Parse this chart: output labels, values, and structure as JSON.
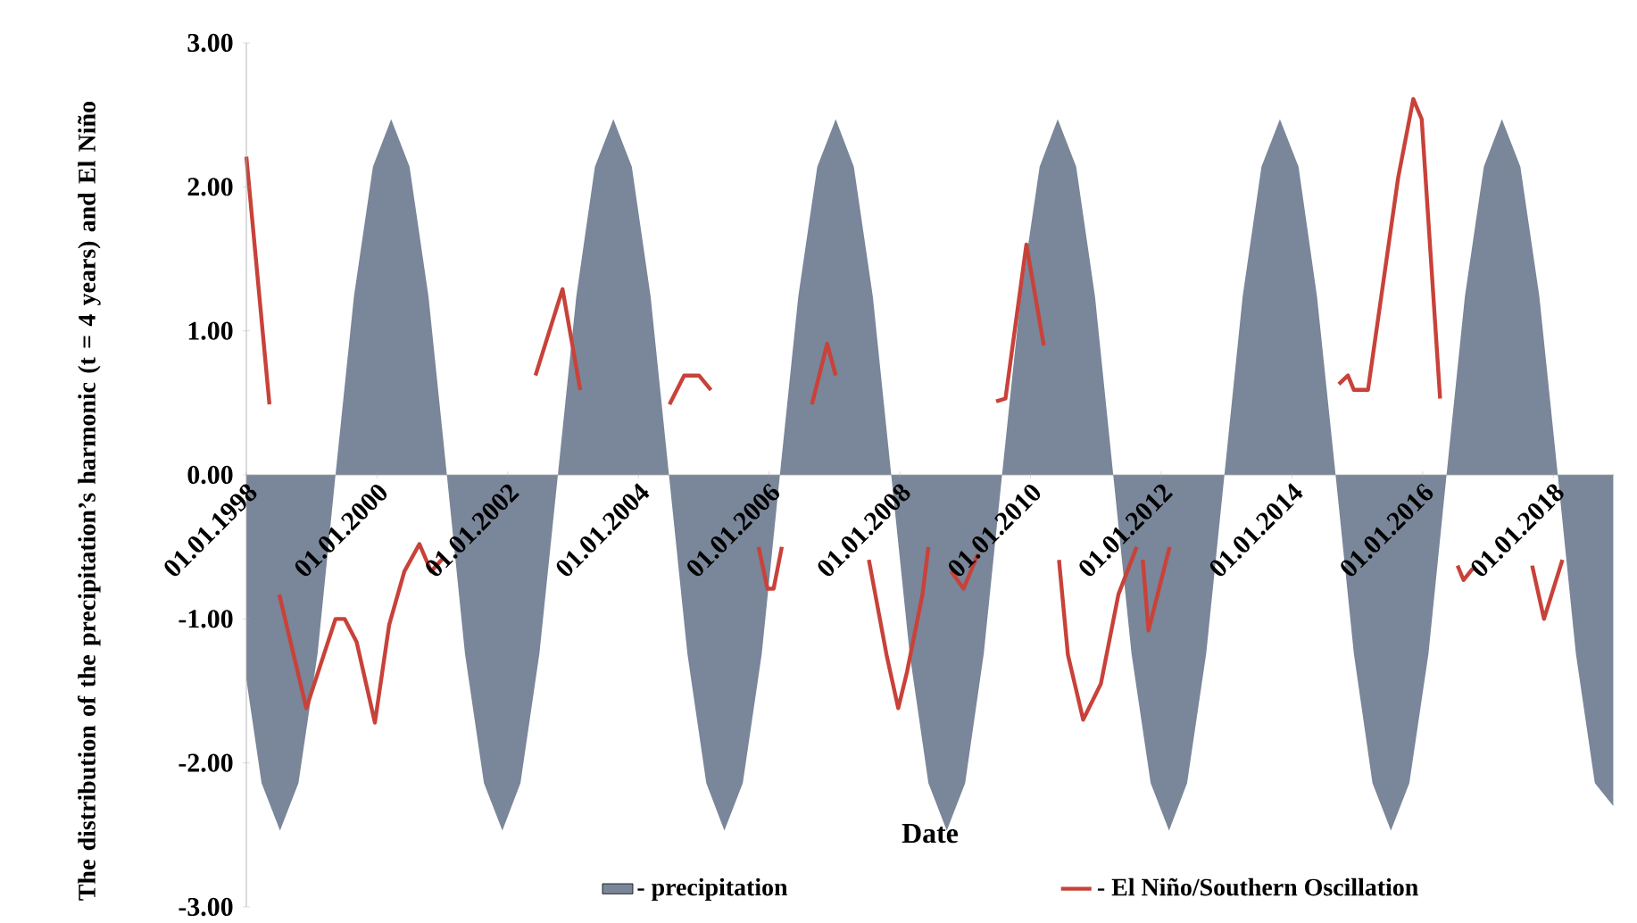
{
  "chart_data": {
    "type": "line",
    "xlabel": "Date",
    "ylabel": "The distribution of the precipitation’s harmonic (t = 4 years) and El Niño",
    "xlim": [
      "1998-01-01",
      "2018-12-05"
    ],
    "ylim": [
      -3,
      3
    ],
    "xticks": [
      {
        "value": "1998-01-01",
        "label": "01.01.1998"
      },
      {
        "value": "2000-01-01",
        "label": "01.01.2000"
      },
      {
        "value": "2002-01-01",
        "label": "01.01.2002"
      },
      {
        "value": "2004-01-01",
        "label": "01.01.2004"
      },
      {
        "value": "2006-01-01",
        "label": "01.01.2006"
      },
      {
        "value": "2008-01-01",
        "label": "01.01.2008"
      },
      {
        "value": "2010-01-01",
        "label": "01.01.2010"
      },
      {
        "value": "2012-01-01",
        "label": "01.01.2012"
      },
      {
        "value": "2014-01-01",
        "label": "01.01.2014"
      },
      {
        "value": "2016-01-01",
        "label": "01.01.2016"
      },
      {
        "value": "2018-01-01",
        "label": "01.01.2018"
      }
    ],
    "yticks": [
      {
        "value": -3,
        "label": "-3.00"
      },
      {
        "value": -2,
        "label": "-2.00"
      },
      {
        "value": -1,
        "label": "-1.00"
      },
      {
        "value": 0,
        "label": "0.00"
      },
      {
        "value": 1,
        "label": "1.00"
      },
      {
        "value": 2,
        "label": "2.00"
      },
      {
        "value": 3,
        "label": "3.00"
      }
    ],
    "grid": false,
    "legend": "bottom",
    "marker": "none",
    "line_style": "solid",
    "series": [
      {
        "name": "- precipitation",
        "type": "area",
        "color": "#7a8699",
        "x": [
          "1998-01-01",
          "1998-03-27",
          "1998-07-08",
          "1998-10-19",
          "1999-02-03",
          "1999-05-14",
          "1999-08-25",
          "1999-12-09",
          "2000-03-20",
          "2000-07-01",
          "2000-10-15",
          "2001-01-26",
          "2001-05-07",
          "2001-08-21",
          "2001-12-02",
          "2002-03-13",
          "2002-06-27",
          "2002-10-08",
          "2003-01-19",
          "2003-05-03",
          "2003-08-14",
          "2003-11-25",
          "2004-03-09",
          "2004-06-20",
          "2004-10-01",
          "2005-01-15",
          "2005-04-26",
          "2005-08-07",
          "2005-11-21",
          "2006-03-02",
          "2006-06-13",
          "2006-09-27",
          "2007-01-08",
          "2007-04-19",
          "2007-08-03",
          "2007-11-14",
          "2008-02-25",
          "2008-06-09",
          "2008-09-20",
          "2009-01-01",
          "2009-04-15",
          "2009-07-26",
          "2009-11-07",
          "2010-02-21",
          "2010-06-02",
          "2010-09-13",
          "2010-12-27",
          "2011-04-08",
          "2011-07-19",
          "2011-11-03",
          "2012-02-14",
          "2012-05-25",
          "2012-09-09",
          "2012-12-20",
          "2013-04-01",
          "2013-07-15",
          "2013-10-26",
          "2014-02-07",
          "2014-05-21",
          "2014-09-02",
          "2014-12-13",
          "2015-03-27",
          "2015-07-08",
          "2015-10-19",
          "2016-02-03",
          "2016-05-14",
          "2016-08-25",
          "2016-12-09",
          "2017-03-20",
          "2017-07-01",
          "2017-10-15",
          "2018-01-26",
          "2018-05-07",
          "2018-08-21",
          "2018-12-02"
        ],
        "values": [
          -1.42,
          -2.14,
          -2.47,
          -2.14,
          -1.24,
          0,
          1.24,
          2.14,
          2.47,
          2.14,
          1.24,
          0,
          -1.24,
          -2.14,
          -2.47,
          -2.14,
          -1.24,
          0,
          1.24,
          2.14,
          2.47,
          2.14,
          1.24,
          0,
          -1.24,
          -2.14,
          -2.47,
          -2.14,
          -1.24,
          0,
          1.24,
          2.14,
          2.47,
          2.14,
          1.24,
          0,
          -1.24,
          -2.14,
          -2.47,
          -2.14,
          -1.24,
          0,
          1.24,
          2.14,
          2.47,
          2.14,
          1.24,
          0,
          -1.24,
          -2.14,
          -2.47,
          -2.14,
          -1.24,
          0,
          1.24,
          2.14,
          2.47,
          2.14,
          1.24,
          0,
          -1.24,
          -2.14,
          -2.47,
          -2.14,
          -1.24,
          0,
          1.24,
          2.14,
          2.47,
          2.14,
          1.24,
          0,
          -1.24,
          -2.14,
          -2.3
        ]
      },
      {
        "name": "- El Niño/Southern Oscillation",
        "color": "#c8423a",
        "x": [
          "1998-01-01",
          "1998-05-10",
          "1998-06-05",
          "1998-07-04",
          "1998-12-02",
          "1999-05-14",
          "1999-07-04",
          "1999-09-09",
          "1999-12-20",
          "2000-03-09",
          "2000-06-02",
          "2000-08-25",
          "2000-10-30",
          "2001-01-04",
          "2001-07-01",
          "2002-06-05",
          "2002-11-03",
          "2003-02-10",
          "2003-10-19",
          "2004-06-23",
          "2004-09-13",
          "2004-12-05",
          "2005-02-10",
          "2005-07-01",
          "2005-11-03",
          "2005-12-23",
          "2006-01-26",
          "2006-03-13",
          "2006-05-25",
          "2006-08-28",
          "2006-11-21",
          "2007-01-08",
          "2007-04-19",
          "2007-07-12",
          "2007-10-19",
          "2007-12-23",
          "2008-02-10",
          "2008-05-07",
          "2008-06-09",
          "2008-08-07",
          "2008-10-15",
          "2008-12-23",
          "2009-03-13",
          "2009-05-07",
          "2009-06-23",
          "2009-08-14",
          "2009-12-09",
          "2010-03-16",
          "2010-04-19",
          "2010-06-09",
          "2010-07-29",
          "2010-10-22",
          "2011-01-29",
          "2011-05-07",
          "2011-08-17",
          "2011-09-05",
          "2011-09-20",
          "2011-10-22",
          "2012-02-17",
          "2013-07-01",
          "2014-09-20",
          "2014-11-10",
          "2014-12-13",
          "2015-03-02",
          "2015-08-17",
          "2015-11-10",
          "2015-12-27",
          "2016-04-08",
          "2016-05-25",
          "2016-07-15",
          "2016-08-17",
          "2016-10-08",
          "2017-03-13",
          "2017-09-05",
          "2017-11-10",
          "2018-02-21"
        ],
        "values": [
          2.21,
          0.49,
          null,
          -0.83,
          -1.62,
          -1.0,
          -1.0,
          -1.16,
          -1.72,
          -1.04,
          -0.67,
          -0.48,
          -0.67,
          -0.58,
          null,
          0.69,
          1.29,
          0.59,
          null,
          0.49,
          0.69,
          0.69,
          0.59,
          null,
          -0.5,
          -0.79,
          -0.79,
          -0.5,
          null,
          0.49,
          0.91,
          0.69,
          null,
          -0.59,
          -1.25,
          -1.62,
          -1.37,
          -0.83,
          -0.5,
          null,
          -0.67,
          -0.79,
          -0.55,
          null,
          0.51,
          0.53,
          1.6,
          0.9,
          null,
          -0.59,
          -1.25,
          -1.7,
          -1.45,
          -0.83,
          -0.5,
          null,
          -0.59,
          -1.08,
          -0.5,
          null,
          0.63,
          0.69,
          0.59,
          0.59,
          2.06,
          2.61,
          2.47,
          0.53,
          null,
          -0.63,
          -0.73,
          -0.65,
          null,
          -0.63,
          -1.0,
          -0.59
        ]
      }
    ]
  }
}
